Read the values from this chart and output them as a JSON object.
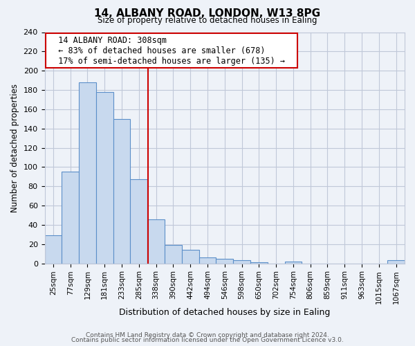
{
  "title_line1": "14, ALBANY ROAD, LONDON, W13 8PG",
  "title_line2": "Size of property relative to detached houses in Ealing",
  "xlabel": "Distribution of detached houses by size in Ealing",
  "ylabel": "Number of detached properties",
  "bin_labels": [
    "25sqm",
    "77sqm",
    "129sqm",
    "181sqm",
    "233sqm",
    "285sqm",
    "338sqm",
    "390sqm",
    "442sqm",
    "494sqm",
    "546sqm",
    "598sqm",
    "650sqm",
    "702sqm",
    "754sqm",
    "806sqm",
    "859sqm",
    "911sqm",
    "963sqm",
    "1015sqm",
    "1067sqm"
  ],
  "bin_values": [
    29,
    95,
    188,
    178,
    150,
    87,
    46,
    19,
    14,
    6,
    5,
    3,
    1,
    0,
    2,
    0,
    0,
    0,
    0,
    0,
    3
  ],
  "bar_color": "#c8d9ee",
  "bar_edge_color": "#5b8fc9",
  "vline_x": 5.54,
  "vline_color": "#cc0000",
  "annotation_title": "14 ALBANY ROAD: 308sqm",
  "annotation_line1": "← 83% of detached houses are smaller (678)",
  "annotation_line2": "17% of semi-detached houses are larger (135) →",
  "annotation_box_color": "#ffffff",
  "annotation_box_edge_color": "#cc0000",
  "ylim": [
    0,
    240
  ],
  "yticks": [
    0,
    20,
    40,
    60,
    80,
    100,
    120,
    140,
    160,
    180,
    200,
    220,
    240
  ],
  "grid_color": "#c0c8d8",
  "background_color": "#eef2f8",
  "footer_line1": "Contains HM Land Registry data © Crown copyright and database right 2024.",
  "footer_line2": "Contains public sector information licensed under the Open Government Licence v3.0."
}
